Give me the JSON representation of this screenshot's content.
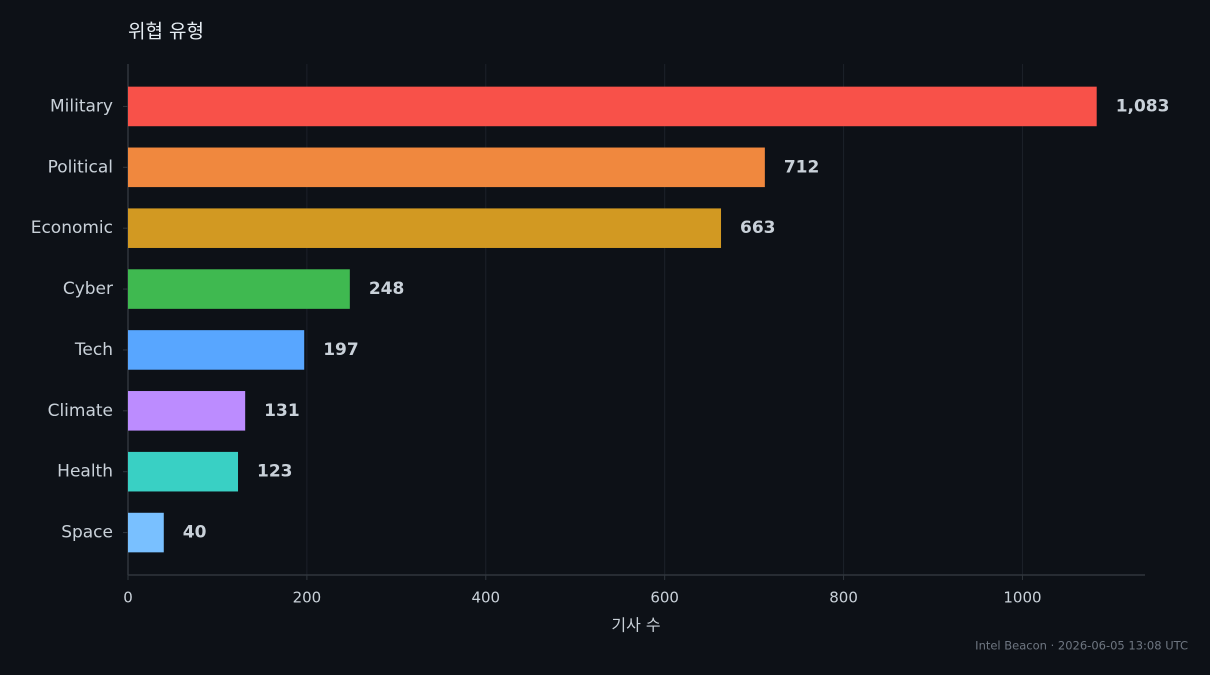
{
  "chart_data": {
    "type": "bar",
    "orientation": "horizontal",
    "title": "위협 유형",
    "x_label": "기사 수",
    "categories": [
      "Military",
      "Political",
      "Economic",
      "Cyber",
      "Tech",
      "Climate",
      "Health",
      "Space"
    ],
    "values": [
      1083,
      712,
      663,
      248,
      197,
      131,
      123,
      40
    ],
    "value_labels": [
      "1,083",
      "712",
      "663",
      "248",
      "197",
      "131",
      "123",
      "40"
    ],
    "colors": [
      "#f85149",
      "#f0883e",
      "#d29922",
      "#3fb950",
      "#58a6ff",
      "#bc8cff",
      "#39d0c4",
      "#79c0ff"
    ],
    "xlim": [
      0,
      1137
    ],
    "xticks": [
      0,
      200,
      400,
      600,
      800,
      1000
    ],
    "grid": true
  },
  "footer": "Intel Beacon · 2026-06-05 13:08 UTC"
}
